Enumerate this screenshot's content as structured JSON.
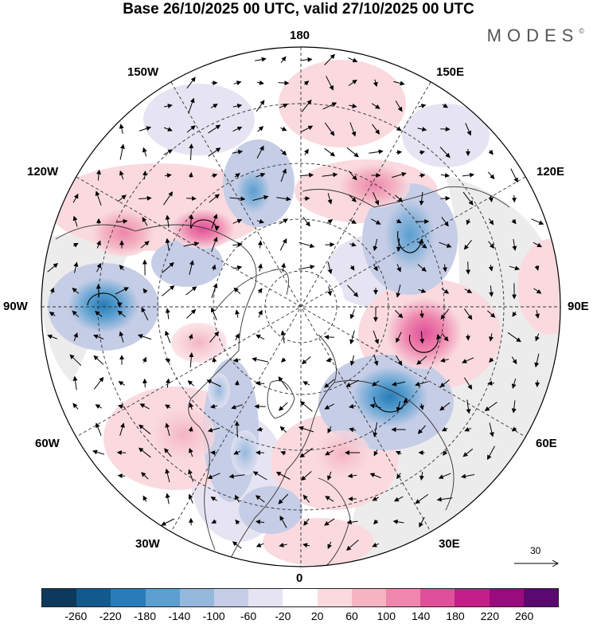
{
  "title": "Base 26/10/2025 00 UTC, valid 27/10/2025 00 UTC",
  "logo": {
    "text": "MODES",
    "mark": "©"
  },
  "longitude_labels": {
    "top": "180",
    "bottom": "0",
    "left": "90W",
    "right": "90E",
    "upper_left_1": "150W",
    "upper_left_2": "120W",
    "upper_right_1": "150E",
    "upper_right_2": "120E",
    "lower_left_1": "60W",
    "lower_left_2": "30W",
    "lower_right_1": "60E",
    "lower_right_2": "30E"
  },
  "vector_scale": {
    "label": "30",
    "icon": "arrow-right-icon"
  },
  "colorbar": {
    "colors": [
      "#0d3a5c",
      "#125a8c",
      "#2a7cb8",
      "#5a9fd0",
      "#94b8dc",
      "#c6cde6",
      "#e6e4f2",
      "#ffffff",
      "#fadadf",
      "#f4b4c2",
      "#ee86ad",
      "#e0509a",
      "#c41e88",
      "#9a0c7e",
      "#5a0a6e"
    ],
    "tick_labels": [
      "-260",
      "-220",
      "-180",
      "-140",
      "-100",
      "-60",
      "-20",
      "20",
      "60",
      "100",
      "140",
      "180",
      "220",
      "260"
    ]
  }
}
